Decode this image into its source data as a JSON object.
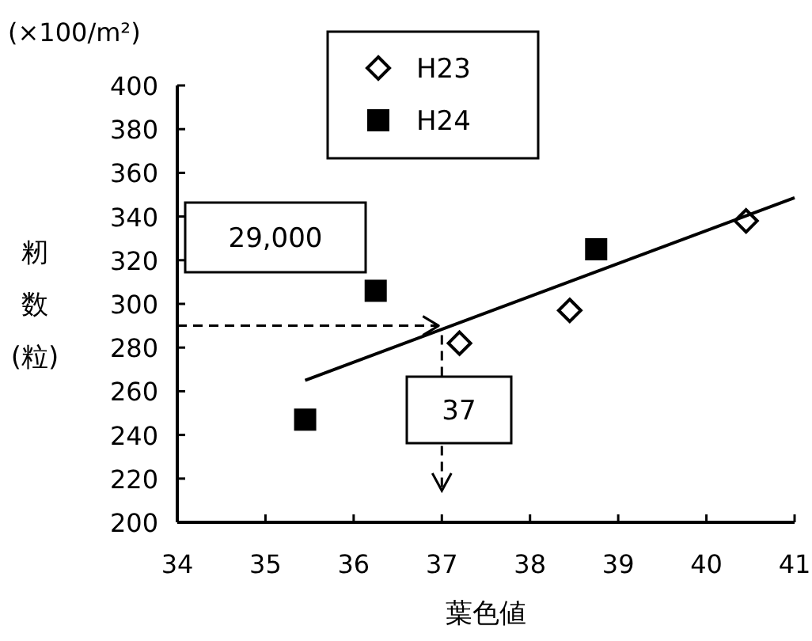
{
  "chart_data": {
    "type": "scatter",
    "xlabel": "葉色値",
    "ylabel": "籾数(粒)",
    "subtitle": "(×100/m²)",
    "xlim": [
      34,
      41
    ],
    "xticks": [
      34,
      35,
      36,
      37,
      38,
      39,
      40,
      41
    ],
    "ylim": [
      200,
      400
    ],
    "yticks": [
      200,
      220,
      240,
      260,
      280,
      300,
      320,
      340,
      360,
      380,
      400
    ],
    "grid": false,
    "legend": "top",
    "series": [
      {
        "name": "H23",
        "color": "#000000",
        "marker": "diamond",
        "x": [
          37.2,
          38.45,
          40.45
        ],
        "values": [
          282,
          297,
          338
        ]
      },
      {
        "name": "H24",
        "color": "#000000",
        "marker": "square",
        "x": [
          35.45,
          36.25,
          38.75
        ],
        "values": [
          247,
          306,
          325
        ]
      },
      {
        "type": "line",
        "color": "#000000",
        "marker": "none",
        "x": [
          35.45,
          41
        ],
        "values": [
          265,
          348.6
        ]
      }
    ],
    "ref_lines": [
      {
        "axis": "y",
        "value": 290,
        "label": "29,000",
        "color": "#000000",
        "line_style": "dashed"
      },
      {
        "axis": "x",
        "value": 37,
        "label": "37",
        "color": "#000000",
        "line_style": "dashed"
      }
    ]
  }
}
